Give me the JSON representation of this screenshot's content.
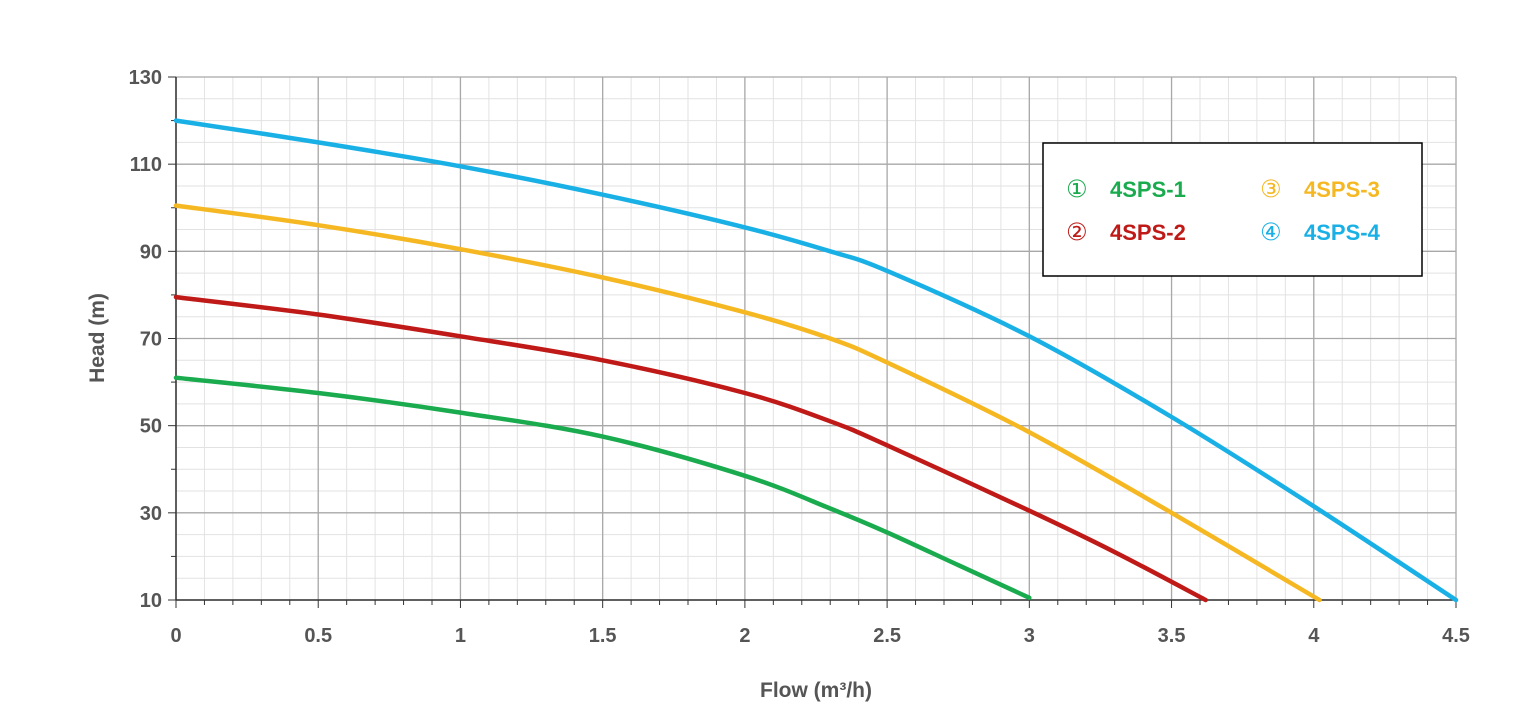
{
  "chart_data": {
    "type": "line",
    "xlabel": "Flow (m³/h)",
    "ylabel": "Head (m)",
    "xlim": [
      0,
      4.5
    ],
    "ylim": [
      10,
      130
    ],
    "x_ticks": [
      "0",
      "0.5",
      "1",
      "1.5",
      "2",
      "2.5",
      "3",
      "3.5",
      "4",
      "4.5"
    ],
    "y_ticks": [
      "10",
      "30",
      "50",
      "70",
      "90",
      "110",
      "130"
    ],
    "grid": true,
    "legend_position": "top-right",
    "series": [
      {
        "name": "4SPS-1",
        "marker": "①",
        "color": "#1aab4f",
        "points": [
          [
            0,
            61
          ],
          [
            0.5,
            57.5
          ],
          [
            1,
            53
          ],
          [
            1.5,
            47.5
          ],
          [
            2,
            38.5
          ],
          [
            2.3,
            31
          ],
          [
            2.5,
            25.5
          ],
          [
            2.75,
            18
          ],
          [
            3,
            10.5
          ]
        ]
      },
      {
        "name": "4SPS-2",
        "marker": "②",
        "color": "#bf1a17",
        "points": [
          [
            0,
            79.5
          ],
          [
            0.5,
            75.5
          ],
          [
            1,
            70.5
          ],
          [
            1.5,
            65
          ],
          [
            2,
            57.5
          ],
          [
            2.3,
            51
          ],
          [
            2.5,
            45.5
          ],
          [
            3,
            30.5
          ],
          [
            3.3,
            21
          ],
          [
            3.62,
            10
          ]
        ]
      },
      {
        "name": "4SPS-3",
        "marker": "③",
        "color": "#f5b822",
        "points": [
          [
            0,
            100.5
          ],
          [
            0.5,
            96
          ],
          [
            1,
            90.5
          ],
          [
            1.5,
            84
          ],
          [
            2,
            76
          ],
          [
            2.3,
            70
          ],
          [
            2.5,
            64.5
          ],
          [
            3,
            48.5
          ],
          [
            3.5,
            30
          ],
          [
            4.02,
            10
          ]
        ]
      },
      {
        "name": "4SPS-4",
        "marker": "④",
        "color": "#19b0e6",
        "points": [
          [
            0,
            120
          ],
          [
            0.5,
            115
          ],
          [
            1,
            109.5
          ],
          [
            1.5,
            103
          ],
          [
            2,
            95.5
          ],
          [
            2.3,
            90
          ],
          [
            2.5,
            85.5
          ],
          [
            3,
            70.5
          ],
          [
            3.5,
            52
          ],
          [
            4,
            31.5
          ],
          [
            4.5,
            10
          ]
        ]
      }
    ]
  }
}
